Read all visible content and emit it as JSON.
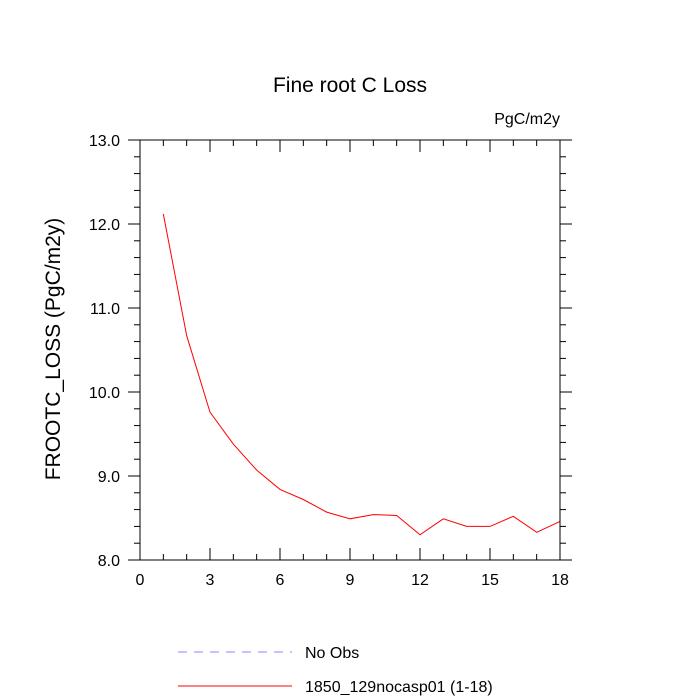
{
  "chart_data": {
    "type": "line",
    "title": "Fine root C Loss",
    "units_label": "PgC/m2y",
    "ylabel": "FROOTC_LOSS  (PgC/m2y)",
    "xlabel": "",
    "xlim": [
      0,
      18
    ],
    "ylim": [
      8.0,
      13.0
    ],
    "xticks": [
      0,
      3,
      6,
      9,
      12,
      15,
      18
    ],
    "xtick_labels": [
      "0",
      "3",
      "6",
      "9",
      "12",
      "15",
      "18"
    ],
    "yticks": [
      8.0,
      9.0,
      10.0,
      11.0,
      12.0,
      13.0
    ],
    "ytick_labels": [
      "8.0",
      "9.0",
      "10.0",
      "11.0",
      "12.0",
      "13.0"
    ],
    "grid": false,
    "legend_position": "bottom",
    "series": [
      {
        "name": "1850_129nocasp01 (1-18)",
        "color": "#ff0000",
        "dash": "solid",
        "x": [
          1,
          2,
          3,
          4,
          5,
          6,
          7,
          8,
          9,
          10,
          11,
          12,
          13,
          14,
          15,
          16,
          17,
          18
        ],
        "y": [
          12.12,
          10.67,
          9.76,
          9.38,
          9.07,
          8.84,
          8.72,
          8.57,
          8.49,
          8.54,
          8.53,
          8.3,
          8.49,
          8.4,
          8.4,
          8.52,
          8.33,
          8.46
        ]
      }
    ],
    "legend": [
      {
        "label": "No Obs",
        "color": "#8888ff",
        "dash": "dashed"
      },
      {
        "label": "1850_129nocasp01 (1-18)",
        "color": "#ff0000",
        "dash": "solid"
      }
    ]
  }
}
